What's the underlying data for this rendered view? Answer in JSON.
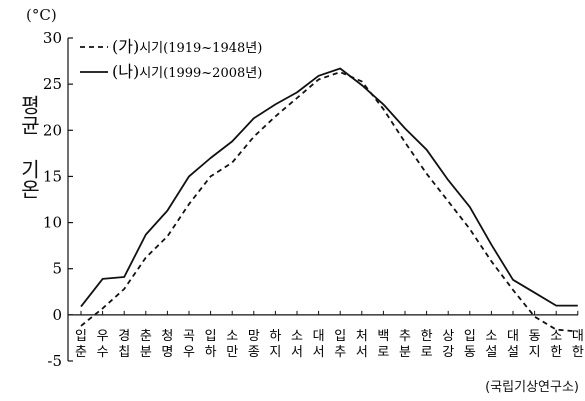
{
  "chart_data": {
    "type": "line",
    "unit_label": "(°C)",
    "ylabel": "평균 기온",
    "source": "(국립기상연구소)",
    "ylim": [
      -5,
      30
    ],
    "yticks": [
      -5,
      0,
      5,
      10,
      15,
      20,
      25,
      30
    ],
    "categories": [
      [
        "입",
        "춘"
      ],
      [
        "우",
        "수"
      ],
      [
        "경",
        "칩"
      ],
      [
        "춘",
        "분"
      ],
      [
        "청",
        "명"
      ],
      [
        "곡",
        "우"
      ],
      [
        "입",
        "하"
      ],
      [
        "소",
        "만"
      ],
      [
        "망",
        "종"
      ],
      [
        "하",
        "지"
      ],
      [
        "소",
        "서"
      ],
      [
        "대",
        "서"
      ],
      [
        "입",
        "추"
      ],
      [
        "처",
        "서"
      ],
      [
        "백",
        "로"
      ],
      [
        "추",
        "분"
      ],
      [
        "한",
        "로"
      ],
      [
        "상",
        "강"
      ],
      [
        "입",
        "동"
      ],
      [
        "소",
        "설"
      ],
      [
        "대",
        "설"
      ],
      [
        "동",
        "지"
      ],
      [
        "소",
        "한"
      ],
      [
        "대",
        "한"
      ]
    ],
    "series": [
      {
        "name": "(가)시기(1919~1948년)",
        "name_paren": "(가)",
        "name_rest": "시기(1919~1948년)",
        "style": "dashed",
        "values": [
          -1.2,
          0.7,
          2.8,
          6.2,
          8.5,
          12.0,
          15.0,
          16.5,
          19.3,
          21.5,
          23.5,
          25.5,
          26.3,
          25.3,
          22.3,
          18.7,
          15.3,
          12.3,
          9.3,
          5.8,
          2.7,
          -0.2,
          -1.6,
          -1.8
        ]
      },
      {
        "name": "(나)시기(1999~2008년)",
        "name_paren": "(나)",
        "name_rest": "시기(1999~2008년)",
        "style": "solid",
        "values": [
          0.9,
          3.9,
          4.1,
          8.7,
          11.3,
          15.0,
          17.0,
          18.8,
          21.3,
          22.8,
          24.1,
          25.9,
          26.7,
          24.9,
          22.8,
          20.2,
          17.9,
          14.6,
          11.7,
          7.6,
          3.8,
          2.4,
          1.0,
          1.0
        ]
      }
    ]
  }
}
